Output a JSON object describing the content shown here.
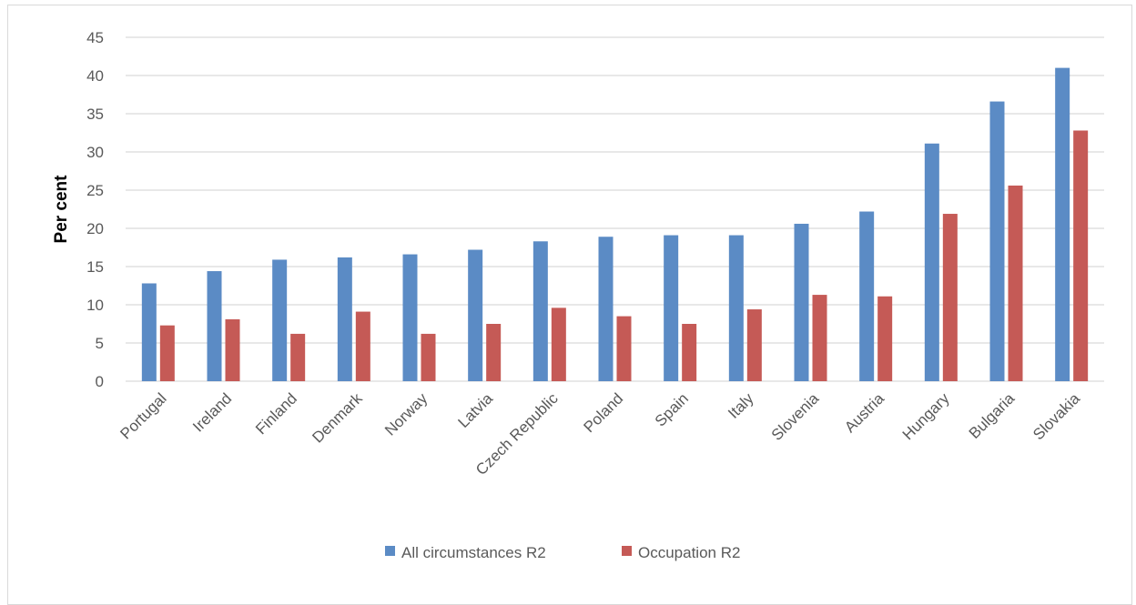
{
  "chart_data": {
    "type": "bar",
    "title": "",
    "xlabel": "",
    "ylabel": "Per cent",
    "ylim": [
      0,
      45
    ],
    "yticks": [
      0,
      5,
      10,
      15,
      20,
      25,
      30,
      35,
      40,
      45
    ],
    "grid": true,
    "legend": "bottom",
    "categories": [
      "Portugal",
      "Ireland",
      "Finland",
      "Denmark",
      "Norway",
      "Latvia",
      "Czech Republic",
      "Poland",
      "Spain",
      "Italy",
      "Slovenia",
      "Austria",
      "Hungary",
      "Bulgaria",
      "Slovakia"
    ],
    "series": [
      {
        "name": "All circumstances R2",
        "color": "#5b8bc5",
        "values": [
          12.8,
          14.4,
          15.9,
          16.2,
          16.6,
          17.2,
          18.3,
          18.9,
          19.1,
          19.1,
          20.6,
          22.2,
          31.1,
          36.6,
          41.0
        ]
      },
      {
        "name": "Occupation R2",
        "color": "#c55a56",
        "values": [
          7.3,
          8.1,
          6.2,
          9.1,
          6.2,
          7.5,
          9.6,
          8.5,
          7.5,
          9.4,
          11.3,
          11.1,
          21.9,
          25.6,
          32.8
        ]
      }
    ]
  }
}
